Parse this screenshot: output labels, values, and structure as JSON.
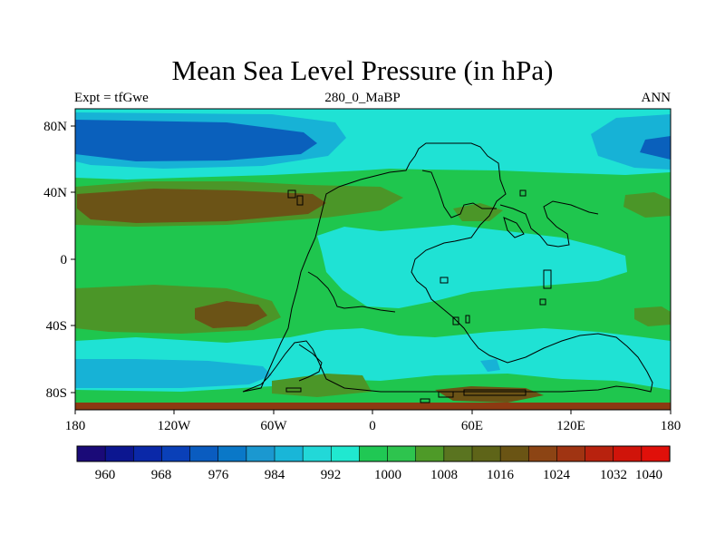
{
  "chart_data": {
    "type": "map",
    "title": "Mean Sea Level Pressure (in hPa)",
    "subtitle_left": "Expt = tfGwe",
    "subtitle_center": "280_0_MaBP",
    "subtitle_right": "ANN",
    "x_ticks": [
      "180",
      "120W",
      "60W",
      "0",
      "60E",
      "120E",
      "180"
    ],
    "y_ticks": [
      "80N",
      "40N",
      "0",
      "40S",
      "80S"
    ],
    "colorbar_labels": [
      "960",
      "968",
      "976",
      "984",
      "992",
      "1000",
      "1008",
      "1016",
      "1024",
      "1032",
      "1040"
    ],
    "colorbar_colors": [
      "#1a0a78",
      "#0c1690",
      "#0a28a8",
      "#0a40b8",
      "#0a5cc0",
      "#0a78c8",
      "#1b98d0",
      "#19b6d8",
      "#22d8d8",
      "#20e8d0",
      "#20c854",
      "#2ec44e",
      "#4e9a28",
      "#5a7420",
      "#5e6418",
      "#6a5414",
      "#8c4414",
      "#a03412",
      "#b8220e",
      "#d0140a",
      "#e0100a"
    ]
  }
}
